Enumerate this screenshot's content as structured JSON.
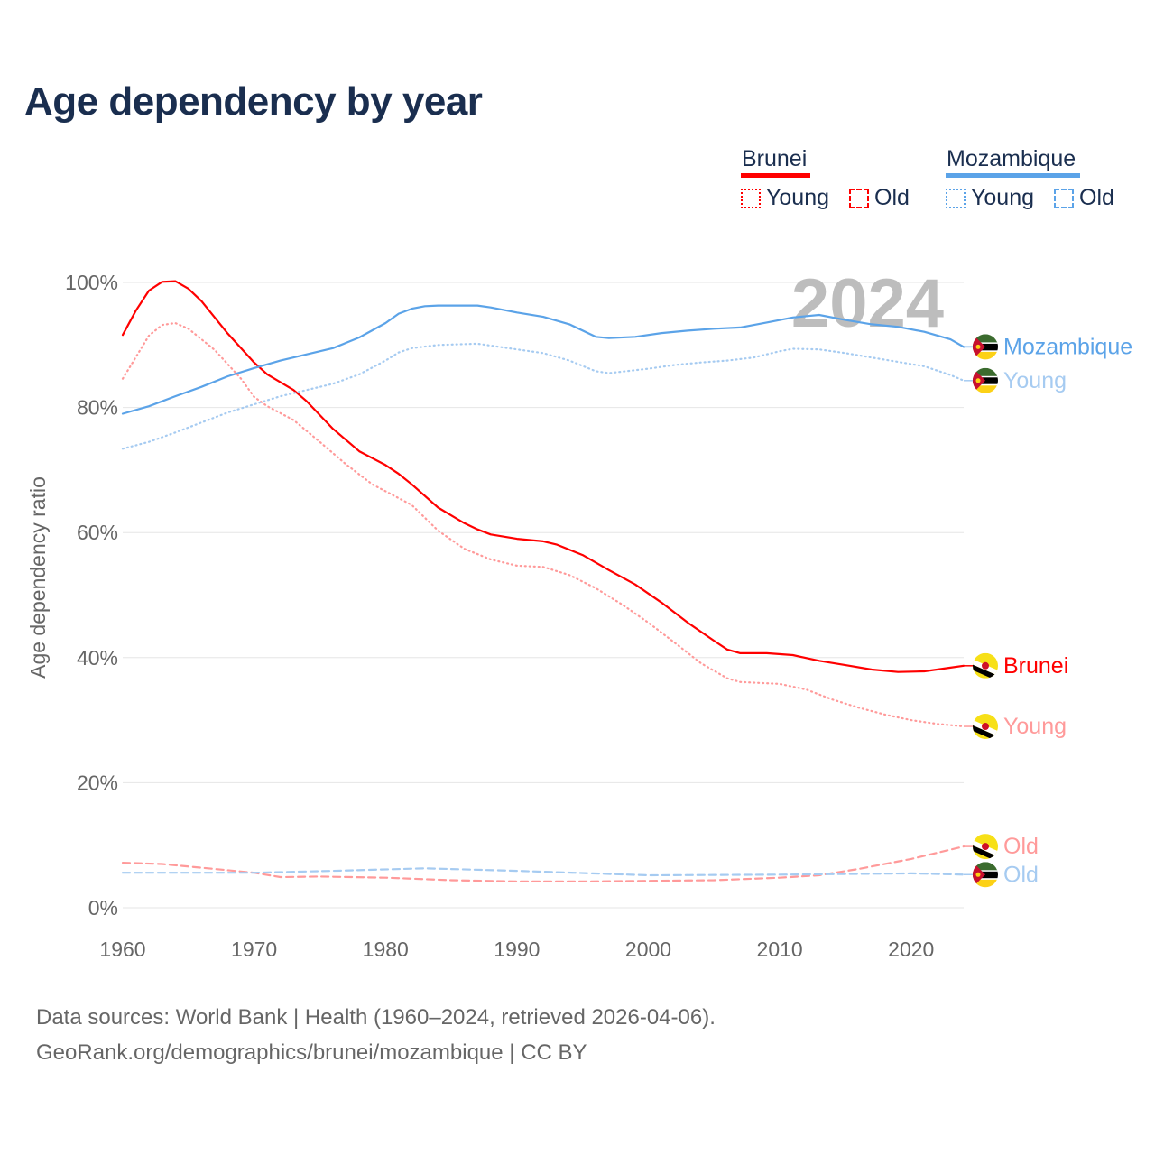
{
  "title": "Age dependency by year",
  "legend": {
    "countries": [
      {
        "name": "Brunei",
        "color": "#ff0000",
        "items": [
          {
            "label": "Young",
            "style": "dotted"
          },
          {
            "label": "Old",
            "style": "dashed"
          }
        ]
      },
      {
        "name": "Mozambique",
        "color": "#5ba3e8",
        "items": [
          {
            "label": "Young",
            "style": "dotted"
          },
          {
            "label": "Old",
            "style": "dashed"
          }
        ]
      }
    ]
  },
  "source": {
    "line1": "Data sources: World Bank | Health (1960–2024, retrieved 2026-04-06).",
    "line2": "GeoRank.org/demographics/brunei/mozambique | CC BY"
  },
  "chart_data": {
    "type": "line",
    "title": "Age dependency by year",
    "xlabel": "",
    "ylabel": "Age dependency ratio",
    "year_watermark": "2024",
    "xlim": [
      1960,
      2024
    ],
    "ylim": [
      0,
      100
    ],
    "xticks": [
      1960,
      1970,
      1980,
      1990,
      2000,
      2010,
      2020
    ],
    "yticks": [
      0,
      20,
      40,
      60,
      80,
      100
    ],
    "ytick_labels": [
      "0%",
      "20%",
      "40%",
      "60%",
      "80%",
      "100%"
    ],
    "grid": true,
    "legend_position": "top-right",
    "series": [
      {
        "name": "Brunei",
        "label": "Brunei",
        "country": "brunei",
        "style": "solid",
        "color": "#ff0000",
        "label_color": "#ff0000",
        "points": [
          [
            1960,
            91.6
          ],
          [
            1961,
            95.5
          ],
          [
            1962,
            98.7
          ],
          [
            1963,
            100.1
          ],
          [
            1964,
            100.2
          ],
          [
            1965,
            99
          ],
          [
            1966,
            97
          ],
          [
            1968,
            91.8
          ],
          [
            1970,
            87.2
          ],
          [
            1971,
            85.3
          ],
          [
            1973,
            82.8
          ],
          [
            1974,
            81
          ],
          [
            1976,
            76.6
          ],
          [
            1978,
            73
          ],
          [
            1980,
            70.8
          ],
          [
            1981,
            69.4
          ],
          [
            1982,
            67.7
          ],
          [
            1984,
            64
          ],
          [
            1986,
            61.5
          ],
          [
            1987,
            60.5
          ],
          [
            1988,
            59.7
          ],
          [
            1990,
            59
          ],
          [
            1992,
            58.6
          ],
          [
            1993,
            58.1
          ],
          [
            1995,
            56.4
          ],
          [
            1997,
            54
          ],
          [
            1999,
            51.7
          ],
          [
            2001,
            48.8
          ],
          [
            2003,
            45.6
          ],
          [
            2005,
            42.7
          ],
          [
            2006,
            41.3
          ],
          [
            2007,
            40.7
          ],
          [
            2009,
            40.7
          ],
          [
            2011,
            40.4
          ],
          [
            2013,
            39.5
          ],
          [
            2015,
            38.8
          ],
          [
            2017,
            38.1
          ],
          [
            2019,
            37.7
          ],
          [
            2021,
            37.8
          ],
          [
            2023,
            38.4
          ],
          [
            2024,
            38.7
          ]
        ]
      },
      {
        "name": "Brunei Young",
        "label": "Young",
        "country": "brunei",
        "style": "dotted",
        "color": "#ff9a9a",
        "label_color": "#ff9a9a",
        "points": [
          [
            1960,
            84.6
          ],
          [
            1962,
            91.5
          ],
          [
            1963,
            93.2
          ],
          [
            1964,
            93.5
          ],
          [
            1965,
            92.6
          ],
          [
            1967,
            89.2
          ],
          [
            1969,
            84.6
          ],
          [
            1970,
            81.7
          ],
          [
            1971,
            80.2
          ],
          [
            1973,
            78
          ],
          [
            1975,
            74.5
          ],
          [
            1977,
            70.9
          ],
          [
            1979,
            67.7
          ],
          [
            1982,
            64.4
          ],
          [
            1984,
            60.3
          ],
          [
            1986,
            57.4
          ],
          [
            1988,
            55.7
          ],
          [
            1990,
            54.7
          ],
          [
            1992,
            54.5
          ],
          [
            1994,
            53.2
          ],
          [
            1996,
            51.1
          ],
          [
            1998,
            48.5
          ],
          [
            2000,
            45.6
          ],
          [
            2002,
            42.4
          ],
          [
            2004,
            39.1
          ],
          [
            2006,
            36.7
          ],
          [
            2007,
            36.1
          ],
          [
            2010,
            35.8
          ],
          [
            2012,
            34.9
          ],
          [
            2014,
            33.3
          ],
          [
            2016,
            32
          ],
          [
            2018,
            30.9
          ],
          [
            2020,
            30
          ],
          [
            2022,
            29.4
          ],
          [
            2024,
            29
          ]
        ]
      },
      {
        "name": "Brunei Old",
        "label": "Old",
        "country": "brunei",
        "style": "dashed",
        "color": "#ff9a9a",
        "label_color": "#ff9a9a",
        "points": [
          [
            1960,
            7.2
          ],
          [
            1963,
            7.0
          ],
          [
            1967,
            6.2
          ],
          [
            1970,
            5.6
          ],
          [
            1972,
            4.9
          ],
          [
            1975,
            5.0
          ],
          [
            1980,
            4.8
          ],
          [
            1985,
            4.4
          ],
          [
            1990,
            4.2
          ],
          [
            1995,
            4.2
          ],
          [
            2000,
            4.3
          ],
          [
            2005,
            4.4
          ],
          [
            2010,
            4.8
          ],
          [
            2013,
            5.2
          ],
          [
            2016,
            6.2
          ],
          [
            2020,
            7.8
          ],
          [
            2024,
            9.8
          ]
        ]
      },
      {
        "name": "Mozambique",
        "label": "Mozambique",
        "country": "mozambique",
        "style": "solid",
        "color": "#5ba3e8",
        "label_color": "#5ba3e8",
        "points": [
          [
            1960,
            79
          ],
          [
            1962,
            80.2
          ],
          [
            1964,
            81.8
          ],
          [
            1966,
            83.3
          ],
          [
            1968,
            85
          ],
          [
            1970,
            86.3
          ],
          [
            1972,
            87.5
          ],
          [
            1974,
            88.5
          ],
          [
            1976,
            89.5
          ],
          [
            1978,
            91.2
          ],
          [
            1980,
            93.5
          ],
          [
            1981,
            95
          ],
          [
            1982,
            95.8
          ],
          [
            1983,
            96.2
          ],
          [
            1984,
            96.3
          ],
          [
            1987,
            96.3
          ],
          [
            1988,
            96
          ],
          [
            1990,
            95.2
          ],
          [
            1992,
            94.5
          ],
          [
            1994,
            93.3
          ],
          [
            1996,
            91.3
          ],
          [
            1997,
            91.1
          ],
          [
            1999,
            91.3
          ],
          [
            2001,
            91.9
          ],
          [
            2003,
            92.3
          ],
          [
            2005,
            92.6
          ],
          [
            2007,
            92.8
          ],
          [
            2009,
            93.6
          ],
          [
            2011,
            94.4
          ],
          [
            2013,
            94.8
          ],
          [
            2015,
            94
          ],
          [
            2017,
            93.3
          ],
          [
            2019,
            92.9
          ],
          [
            2021,
            92.1
          ],
          [
            2023,
            90.9
          ],
          [
            2024,
            89.7
          ]
        ]
      },
      {
        "name": "Mozambique Young",
        "label": "Young",
        "country": "mozambique",
        "style": "dotted",
        "color": "#a6cbf1",
        "label_color": "#a6cbf1",
        "points": [
          [
            1960,
            73.4
          ],
          [
            1962,
            74.5
          ],
          [
            1964,
            76
          ],
          [
            1966,
            77.6
          ],
          [
            1968,
            79.2
          ],
          [
            1970,
            80.5
          ],
          [
            1972,
            81.8
          ],
          [
            1974,
            82.8
          ],
          [
            1976,
            83.8
          ],
          [
            1978,
            85.3
          ],
          [
            1980,
            87.5
          ],
          [
            1981,
            88.8
          ],
          [
            1982,
            89.5
          ],
          [
            1984,
            90
          ],
          [
            1987,
            90.2
          ],
          [
            1990,
            89.3
          ],
          [
            1992,
            88.7
          ],
          [
            1994,
            87.5
          ],
          [
            1996,
            85.8
          ],
          [
            1997,
            85.5
          ],
          [
            2000,
            86.2
          ],
          [
            2002,
            86.8
          ],
          [
            2004,
            87.2
          ],
          [
            2006,
            87.5
          ],
          [
            2008,
            88
          ],
          [
            2010,
            89
          ],
          [
            2011,
            89.4
          ],
          [
            2013,
            89.3
          ],
          [
            2015,
            88.7
          ],
          [
            2017,
            88
          ],
          [
            2019,
            87.3
          ],
          [
            2021,
            86.6
          ],
          [
            2023,
            85.2
          ],
          [
            2024,
            84.3
          ]
        ]
      },
      {
        "name": "Mozambique Old",
        "label": "Old",
        "country": "mozambique",
        "style": "dashed",
        "color": "#a6cbf1",
        "label_color": "#a6cbf1",
        "points": [
          [
            1960,
            5.6
          ],
          [
            1970,
            5.6
          ],
          [
            1976,
            5.9
          ],
          [
            1983,
            6.3
          ],
          [
            1990,
            5.9
          ],
          [
            2000,
            5.2
          ],
          [
            2010,
            5.3
          ],
          [
            2020,
            5.5
          ],
          [
            2024,
            5.3
          ]
        ]
      }
    ]
  }
}
